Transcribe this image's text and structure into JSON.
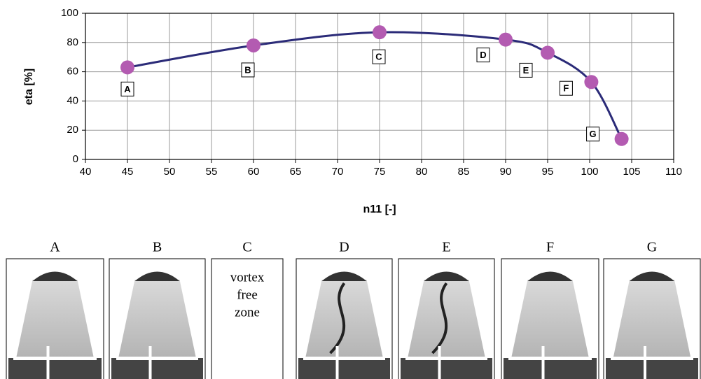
{
  "chart_data": {
    "type": "line",
    "xlabel": "n11 [-]",
    "ylabel": "eta [%]",
    "x": [
      45,
      60,
      75,
      90,
      95,
      100.2,
      103.8
    ],
    "values": [
      63,
      78,
      87,
      82,
      73,
      53,
      14
    ],
    "point_labels": [
      "A",
      "B",
      "C",
      "D",
      "E",
      "F",
      "G"
    ],
    "line_color": "#2b2b78",
    "marker_color": "#b35bb1",
    "xlim": [
      40,
      110
    ],
    "xticks": [
      40,
      45,
      50,
      55,
      60,
      65,
      70,
      75,
      80,
      85,
      90,
      95,
      100,
      105,
      110
    ],
    "ylim": [
      0,
      100
    ],
    "yticks": [
      0,
      20,
      40,
      60,
      80,
      100
    ],
    "grid": true
  },
  "photos": [
    {
      "label": "A"
    },
    {
      "label": "B"
    },
    {
      "label": "C",
      "text": [
        "vortex",
        "free",
        "zone"
      ]
    },
    {
      "label": "D"
    },
    {
      "label": "E"
    },
    {
      "label": "F"
    },
    {
      "label": "G"
    }
  ]
}
